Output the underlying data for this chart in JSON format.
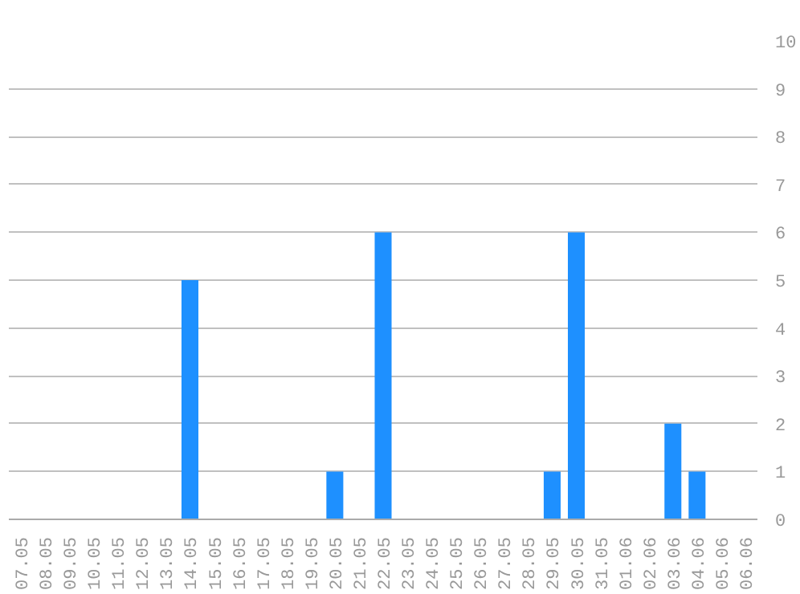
{
  "chart_data": {
    "type": "bar",
    "categories": [
      "07.05",
      "08.05",
      "09.05",
      "10.05",
      "11.05",
      "12.05",
      "13.05",
      "14.05",
      "15.05",
      "16.05",
      "17.05",
      "18.05",
      "19.05",
      "20.05",
      "21.05",
      "22.05",
      "23.05",
      "24.05",
      "25.05",
      "26.05",
      "27.05",
      "28.05",
      "29.05",
      "30.05",
      "31.05",
      "01.06",
      "02.06",
      "03.06",
      "04.06",
      "05.06",
      "06.06"
    ],
    "values": [
      0,
      0,
      0,
      0,
      0,
      0,
      0,
      5,
      0,
      0,
      0,
      0,
      0,
      1,
      0,
      6,
      0,
      0,
      0,
      0,
      0,
      0,
      1,
      6,
      0,
      0,
      0,
      2,
      1,
      0,
      0
    ],
    "color": "#1e90ff",
    "ylim": [
      0,
      10
    ],
    "yticks": [
      0,
      1,
      2,
      3,
      4,
      5,
      6,
      7,
      8,
      9,
      10
    ],
    "grid": "y"
  }
}
